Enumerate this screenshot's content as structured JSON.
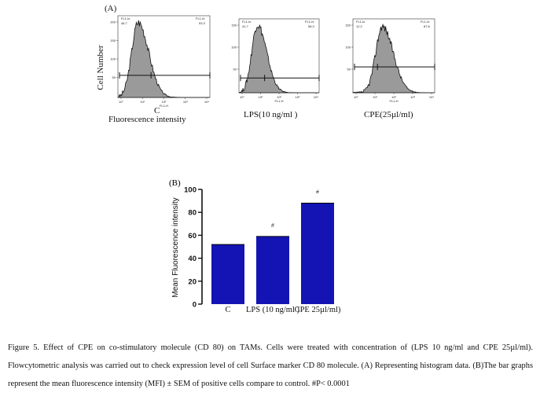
{
  "panel_a": {
    "label": "(A)",
    "y_axis_label": "Cell Number",
    "x_axis_label": "Fluorescence intensity",
    "histograms": [
      {
        "condition": "C",
        "gate_left_label": "FL1-lo",
        "gate_left_value": "46.7",
        "gate_right_label": "FL1-hi",
        "gate_right_value": "53.3",
        "y_ticks": [
          "200",
          "150",
          "100",
          "50"
        ],
        "x_ticks": [
          "10°",
          "10¹",
          "10²",
          "10³",
          "10⁴"
        ],
        "x_label": "FL1-H"
      },
      {
        "condition": "LPS(10 ng/ml )",
        "gate_left_label": "FL1-lo",
        "gate_left_value": "41.7",
        "gate_right_label": "FL1-hi",
        "gate_right_value": "58.3",
        "y_ticks": [
          "150",
          "100",
          "50"
        ],
        "x_ticks": [
          "10°",
          "10¹",
          "10²",
          "10³",
          "10⁴"
        ],
        "x_label": "FL1-H"
      },
      {
        "condition": "CPE(25µl/ml)",
        "gate_left_label": "FL1-lo",
        "gate_left_value": "12.2",
        "gate_right_label": "FL1-hi",
        "gate_right_value": "87.8",
        "y_ticks": [
          "150",
          "100",
          "50"
        ],
        "x_ticks": [
          "10°",
          "10¹",
          "10²",
          "10³",
          "10⁴"
        ],
        "x_label": "FL1-H"
      }
    ]
  },
  "chart_data": {
    "type": "bar",
    "panel_label": "(B)",
    "categories": [
      "C",
      "LPS (10 ng/ml )",
      "CPE  25µl/ml)"
    ],
    "values": [
      52,
      59,
      88
    ],
    "significance": [
      "",
      "#",
      "#"
    ],
    "ylabel": "Mean Fluorescence intensity",
    "xlabel": "",
    "ylim": [
      0,
      100
    ],
    "yticks": [
      0,
      20,
      40,
      60,
      80,
      100
    ],
    "bar_color": "#1414b4"
  },
  "caption": {
    "text": "Figure 5. Effect of CPE on co-stimulatory molecule (CD 80) on TAMs. Cells were treated with concentration of (LPS 10 ng/ml and CPE 25µl/ml). Flowcytometric analysis was carried out to check  expression level  of cell Surface marker CD 80 molecule. (A) Representing histogram data. (B)The bar graphs represent the mean fluorescence intensity (MFI) ± SEM of positive cells compare to control. #P< 0.0001"
  }
}
